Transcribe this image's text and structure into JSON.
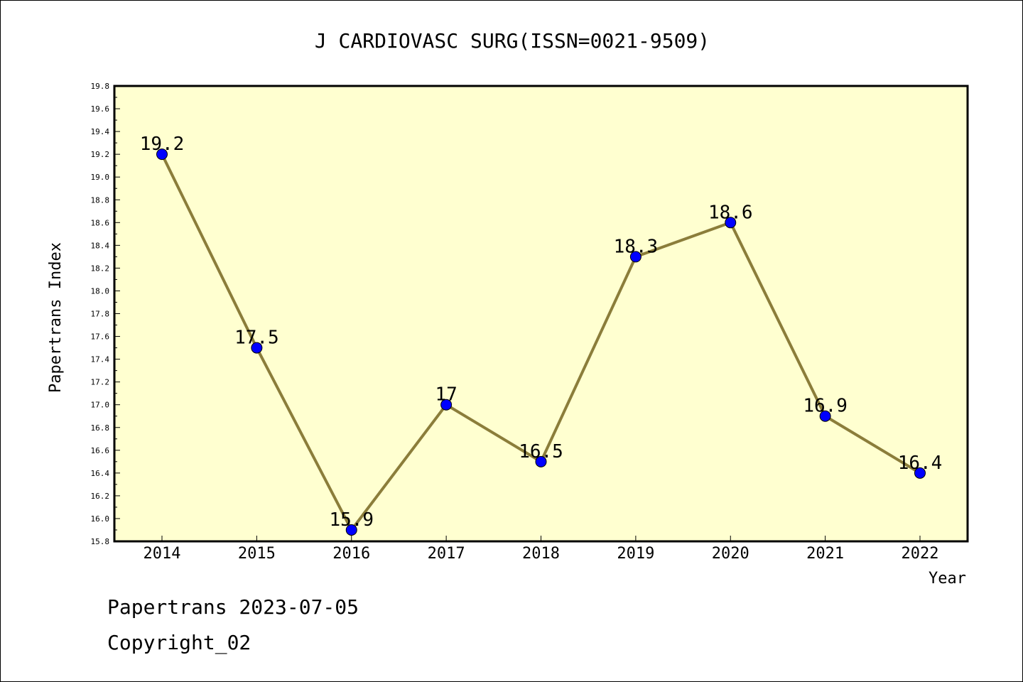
{
  "chart_data": {
    "type": "line",
    "title": "J CARDIOVASC SURG(ISSN=0021-9509)",
    "xlabel": "Year",
    "ylabel": "Papertrans Index",
    "x": [
      "2014",
      "2015",
      "2016",
      "2017",
      "2018",
      "2019",
      "2020",
      "2021",
      "2022"
    ],
    "series": [
      {
        "values": [
          19.2,
          17.5,
          15.9,
          17.0,
          16.5,
          18.3,
          18.6,
          16.9,
          16.4
        ],
        "data_labels": [
          "19.2",
          "17.5",
          "15.9",
          "17",
          "16.5",
          "18.3",
          "18.6",
          "16.9",
          "16.4"
        ],
        "line_color": "#8b7d3a",
        "marker_color": "#0000ff"
      }
    ],
    "ylim": [
      15.8,
      19.8
    ],
    "yticks": [
      "15.8",
      "16.0",
      "16.2",
      "16.4",
      "16.6",
      "16.8",
      "17.0",
      "17.2",
      "17.4",
      "17.6",
      "17.8",
      "18.0",
      "18.2",
      "18.4",
      "18.6",
      "18.8",
      "19.0",
      "19.2",
      "19.4",
      "19.6",
      "19.8"
    ],
    "plot_background": "#ffffd0",
    "grid": false
  },
  "footer": {
    "line1": "Papertrans 2023-07-05",
    "line2": "Copyright_02"
  }
}
